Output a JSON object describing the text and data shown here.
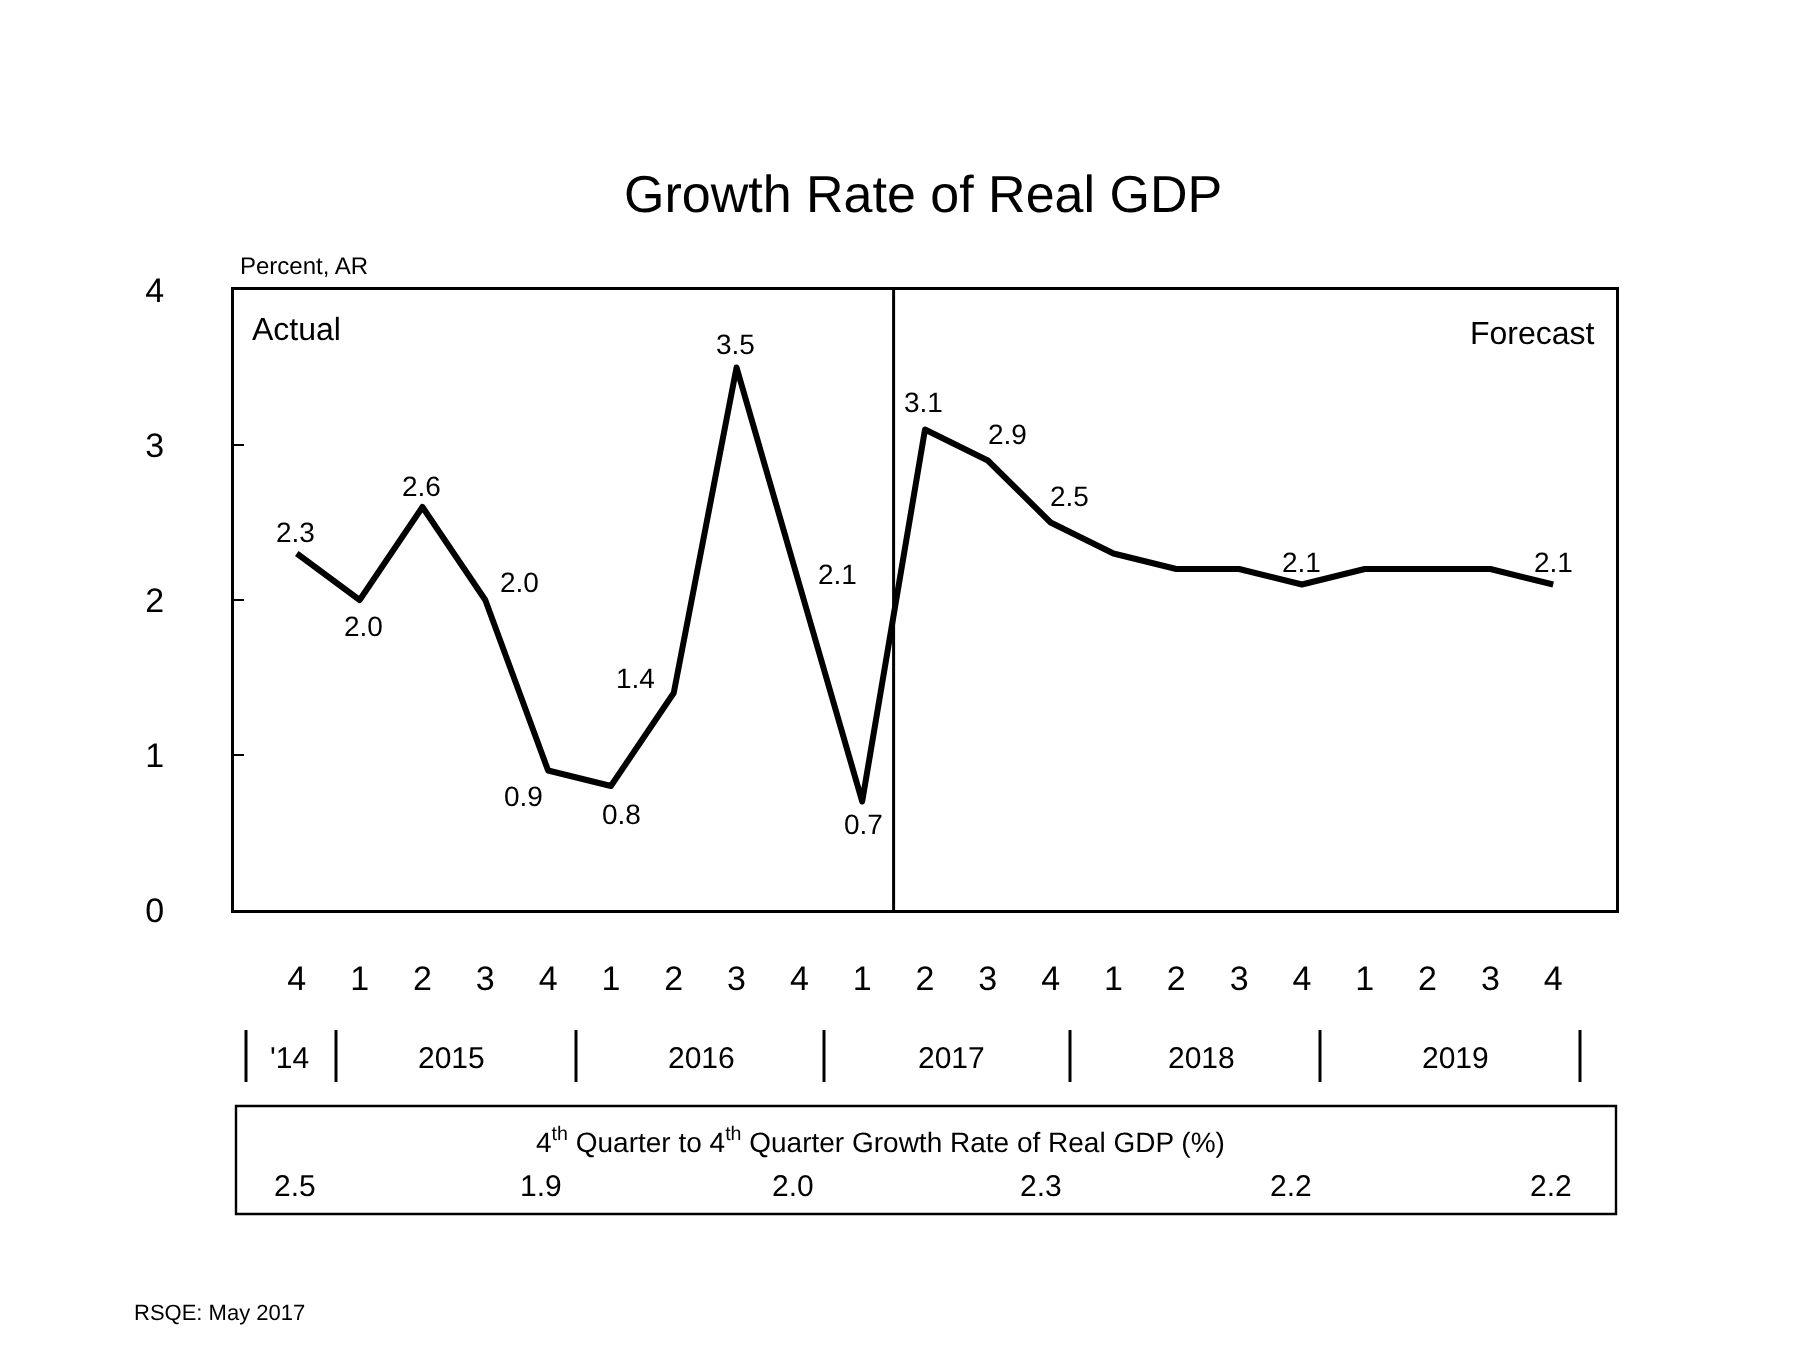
{
  "chart_data": {
    "type": "line",
    "title": "Growth Rate of Real GDP",
    "ylabel": "Percent, AR",
    "categories": [
      "4",
      "1",
      "2",
      "3",
      "4",
      "1",
      "2",
      "3",
      "4",
      "1",
      "2",
      "3",
      "4",
      "1",
      "2",
      "3",
      "4",
      "1",
      "2",
      "3",
      "4"
    ],
    "values": [
      2.3,
      2.0,
      2.6,
      2.0,
      0.9,
      0.8,
      1.4,
      3.5,
      2.1,
      0.7,
      3.1,
      2.9,
      2.5,
      2.3,
      2.2,
      2.2,
      2.1,
      2.2,
      2.2,
      2.2,
      2.1
    ],
    "value_labels": [
      "2.3",
      "2.0",
      "2.6",
      "2.0",
      "0.9",
      "0.8",
      "1.4",
      "3.5",
      "2.1",
      "0.7",
      "3.1",
      "2.9",
      "2.5",
      null,
      null,
      null,
      "2.1",
      null,
      null,
      null,
      "2.1"
    ],
    "color": "#000000",
    "ylim": [
      0,
      4
    ],
    "yticks": [
      0,
      1,
      2,
      3,
      4
    ],
    "grid": false,
    "marker": "none",
    "line_style": "solid",
    "annotations": [
      "Actual",
      "Forecast",
      "'14",
      "2015",
      "2016",
      "2017",
      "2018",
      "2019",
      "4$^{th}$ Quarter to 4$^{th}$ Quarter Growth Rate of Real GDP (%)",
      "2.5",
      "1.9",
      "2.0",
      "2.3",
      "2.2",
      "2.2",
      "RSQE: May 2017"
    ]
  }
}
